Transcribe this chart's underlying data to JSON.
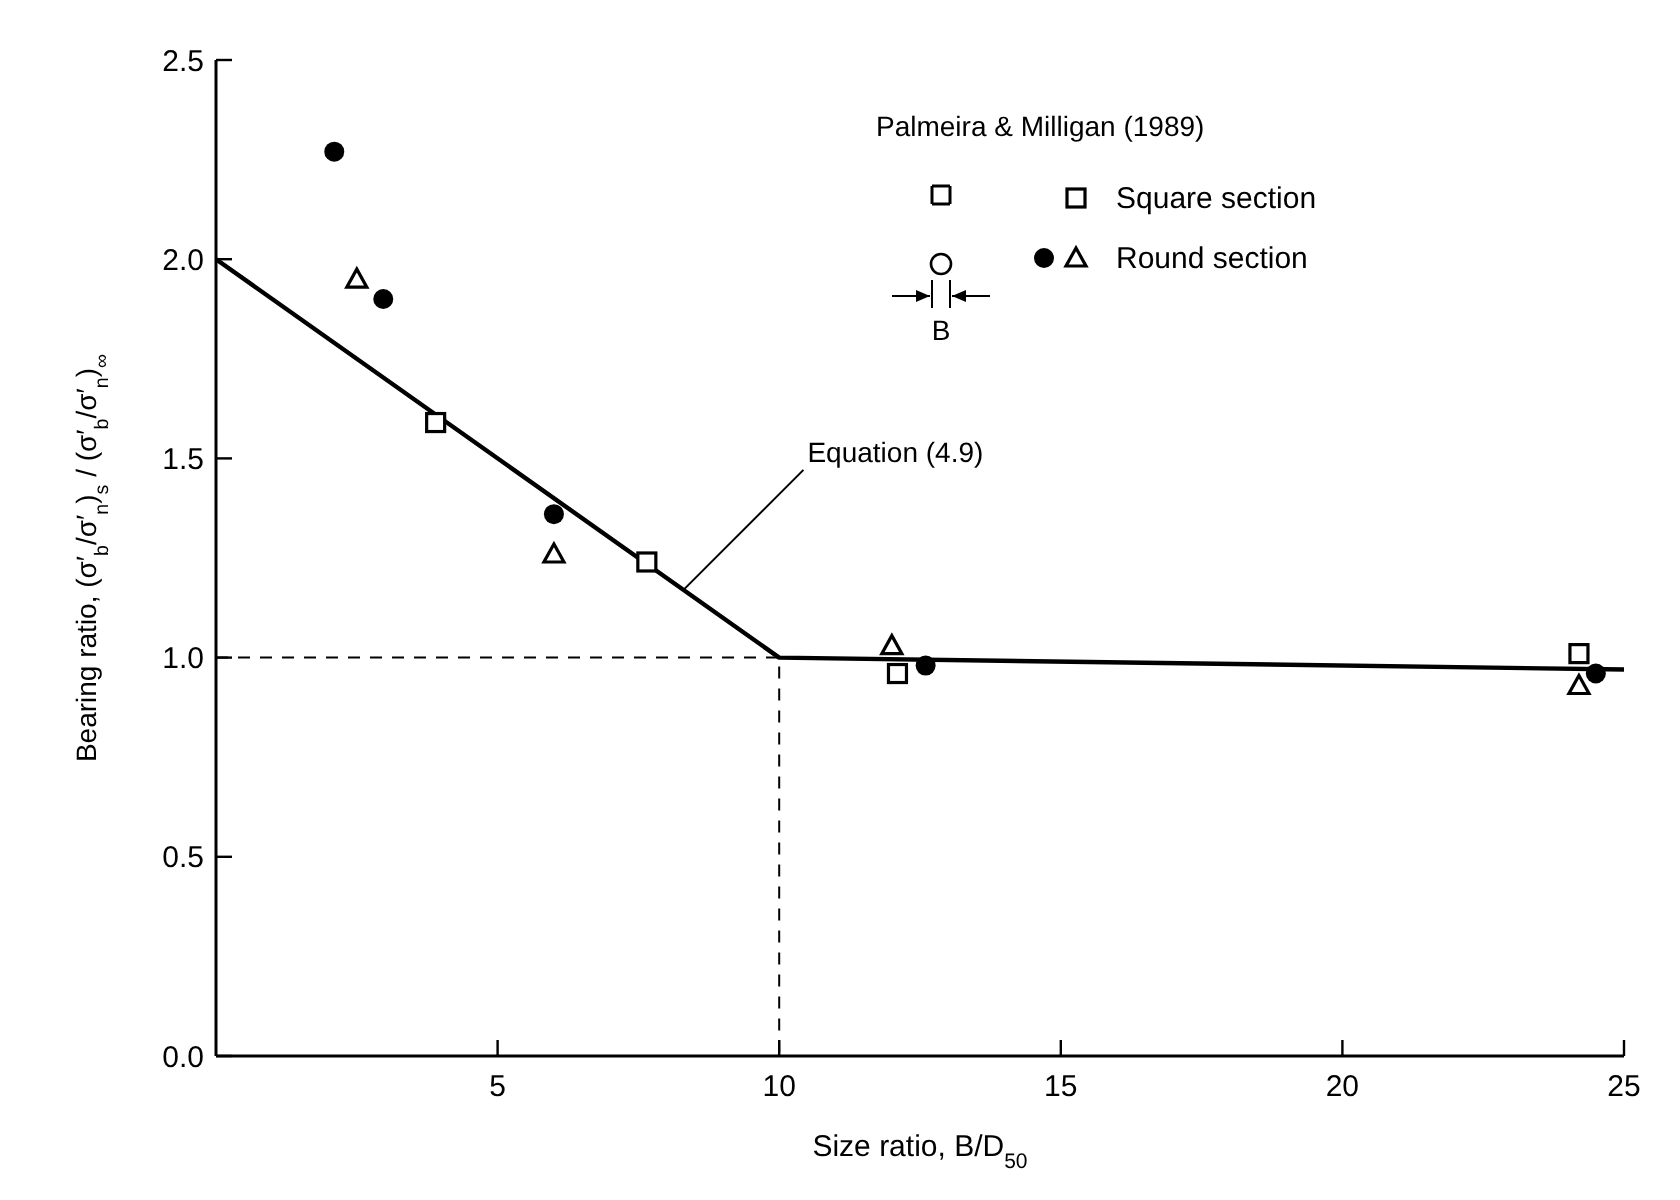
{
  "chart_data": {
    "type": "scatter",
    "xlabel": "Size ratio, B/D$_{50}$",
    "ylabel": "Bearing ratio, (σ′$_{b}$/σ′$_{n}$)$_{s}$ / (σ′$_{b}$/σ′$_{n}$)$_{∞}$",
    "legend_title": "Palmeira & Milligan (1989)",
    "legend": "top right",
    "grid": false,
    "xlim": [
      0,
      25
    ],
    "ylim": [
      0,
      2.5
    ],
    "xticks": [
      5,
      10,
      15,
      20,
      25
    ],
    "yticks": [
      {
        "value": 0,
        "label": "0.0"
      },
      {
        "value": 0.5,
        "label": "0.5"
      },
      {
        "value": 1,
        "label": "1.0"
      },
      {
        "value": 1.5,
        "label": "1.5"
      },
      {
        "value": 2,
        "label": "2.0"
      },
      {
        "value": 2.5,
        "label": "2.5"
      }
    ],
    "series": [
      {
        "type": "line",
        "color": "#000000",
        "marker": "none",
        "line_style": "solid",
        "x": [
          0,
          10,
          25
        ],
        "values": [
          2.0,
          1.0,
          0.97
        ]
      },
      {
        "type": "line",
        "color": "#000000",
        "marker": "none",
        "line_style": "dashed",
        "x": [
          0,
          10,
          10
        ],
        "values": [
          1.0,
          1.0,
          0
        ]
      },
      {
        "name": "Square section",
        "marker": "square",
        "color": "#000000",
        "x": [
          3.9,
          7.65,
          12.1,
          24.2
        ],
        "values": [
          1.59,
          1.24,
          0.96,
          1.01
        ]
      },
      {
        "marker": "circle",
        "color": "#000000",
        "x": [
          2.1,
          2.97,
          6.0,
          12.6,
          24.5
        ],
        "values": [
          2.27,
          1.9,
          1.36,
          0.98,
          0.96
        ]
      },
      {
        "name": "Round section",
        "marker": "triangle",
        "color": "#000000",
        "x": [
          2.5,
          6.0,
          12.0,
          24.2
        ],
        "values": [
          1.95,
          1.26,
          1.03,
          0.93
        ]
      }
    ],
    "annotations": [
      {
        "text": "Equation (4.9)",
        "x": 8.3,
        "y": 1.17
      },
      "B"
    ]
  }
}
